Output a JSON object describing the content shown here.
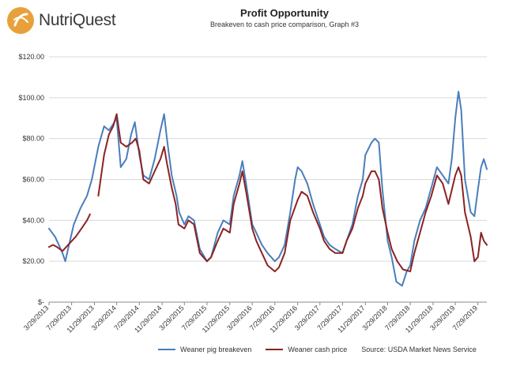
{
  "brand": {
    "name": "NutriQuest"
  },
  "chart_data": {
    "type": "line",
    "title": "Profit Opportunity",
    "subtitle": "Breakeven to cash price comparison, Graph #3",
    "xlabel": "",
    "ylabel": "",
    "x_ticks": [
      "3/29/2013",
      "7/29/2013",
      "11/29/2013",
      "3/29/2014",
      "7/29/2014",
      "11/29/2014",
      "3/29/2015",
      "7/29/2015",
      "11/29/2015",
      "3/29/2016",
      "7/29/2016",
      "11/29/2016",
      "3/29/2017",
      "7/29/2017",
      "11/29/2017",
      "3/29/2018",
      "7/29/2018",
      "11/29/2018",
      "3/29/2019",
      "7/29/2019"
    ],
    "y_ticks": [
      "$-",
      "$20.00",
      "$40.00",
      "$60.00",
      "$80.00",
      "$100.00",
      "$120.00"
    ],
    "ylim": [
      0,
      120
    ],
    "grid": true,
    "legend_position": "bottom",
    "x_dates": [
      "2013-03-29",
      "2013-07-29",
      "2013-11-29",
      "2014-03-29",
      "2014-07-29",
      "2014-11-29",
      "2015-03-29",
      "2015-07-29",
      "2015-11-29",
      "2016-03-29",
      "2016-07-29",
      "2016-11-29",
      "2017-03-29",
      "2017-07-29",
      "2017-11-29",
      "2018-03-29",
      "2018-07-29",
      "2018-11-29",
      "2019-03-29",
      "2019-07-29",
      "2019-09-15"
    ],
    "series": [
      {
        "name": "Weaner pig breakeven",
        "color": "#4a7ebb",
        "points": [
          [
            "2013-03-29",
            36
          ],
          [
            "2013-05-01",
            32
          ],
          [
            "2013-06-10",
            24
          ],
          [
            "2013-06-25",
            20
          ],
          [
            "2013-07-15",
            28
          ],
          [
            "2013-08-10",
            38
          ],
          [
            "2013-09-15",
            46
          ],
          [
            "2013-10-20",
            52
          ],
          [
            "2013-11-15",
            60
          ],
          [
            "2013-12-20",
            76
          ],
          [
            "2014-01-20",
            86
          ],
          [
            "2014-02-15",
            84
          ],
          [
            "2014-03-10",
            87
          ],
          [
            "2014-03-29",
            90
          ],
          [
            "2014-04-20",
            66
          ],
          [
            "2014-05-20",
            70
          ],
          [
            "2014-06-15",
            82
          ],
          [
            "2014-07-05",
            88
          ],
          [
            "2014-07-29",
            72
          ],
          [
            "2014-08-20",
            62
          ],
          [
            "2014-09-20",
            60
          ],
          [
            "2014-10-20",
            70
          ],
          [
            "2014-11-20",
            84
          ],
          [
            "2014-12-10",
            92
          ],
          [
            "2014-12-25",
            80
          ],
          [
            "2015-01-20",
            62
          ],
          [
            "2015-02-15",
            52
          ],
          [
            "2015-03-01",
            44
          ],
          [
            "2015-03-29",
            38
          ],
          [
            "2015-04-20",
            42
          ],
          [
            "2015-05-20",
            40
          ],
          [
            "2015-06-20",
            26
          ],
          [
            "2015-07-29",
            20
          ],
          [
            "2015-08-20",
            22
          ],
          [
            "2015-09-25",
            34
          ],
          [
            "2015-10-25",
            40
          ],
          [
            "2015-11-29",
            38
          ],
          [
            "2015-12-20",
            52
          ],
          [
            "2016-01-20",
            62
          ],
          [
            "2016-02-05",
            69
          ],
          [
            "2016-02-25",
            58
          ],
          [
            "2016-03-29",
            38
          ],
          [
            "2016-04-20",
            34
          ],
          [
            "2016-05-20",
            28
          ],
          [
            "2016-06-20",
            24
          ],
          [
            "2016-07-29",
            20
          ],
          [
            "2016-08-20",
            22
          ],
          [
            "2016-09-20",
            28
          ],
          [
            "2016-10-20",
            44
          ],
          [
            "2016-11-15",
            60
          ],
          [
            "2016-11-29",
            66
          ],
          [
            "2016-12-20",
            64
          ],
          [
            "2017-01-20",
            58
          ],
          [
            "2017-02-20",
            48
          ],
          [
            "2017-03-29",
            38
          ],
          [
            "2017-04-20",
            32
          ],
          [
            "2017-05-20",
            28
          ],
          [
            "2017-06-20",
            26
          ],
          [
            "2017-07-29",
            24
          ],
          [
            "2017-08-20",
            30
          ],
          [
            "2017-09-20",
            38
          ],
          [
            "2017-10-20",
            52
          ],
          [
            "2017-11-15",
            60
          ],
          [
            "2017-11-29",
            72
          ],
          [
            "2018-01-01",
            78
          ],
          [
            "2018-01-20",
            80
          ],
          [
            "2018-02-10",
            78
          ],
          [
            "2018-03-01",
            55
          ],
          [
            "2018-03-29",
            30
          ],
          [
            "2018-04-20",
            22
          ],
          [
            "2018-05-15",
            10
          ],
          [
            "2018-06-15",
            8
          ],
          [
            "2018-07-10",
            15
          ],
          [
            "2018-07-29",
            18
          ],
          [
            "2018-08-20",
            30
          ],
          [
            "2018-09-20",
            40
          ],
          [
            "2018-10-20",
            46
          ],
          [
            "2018-11-20",
            56
          ],
          [
            "2018-12-20",
            66
          ],
          [
            "2019-01-20",
            62
          ],
          [
            "2019-02-20",
            58
          ],
          [
            "2019-03-10",
            70
          ],
          [
            "2019-03-29",
            90
          ],
          [
            "2019-04-15",
            103
          ],
          [
            "2019-04-30",
            94
          ],
          [
            "2019-05-20",
            60
          ],
          [
            "2019-06-20",
            44
          ],
          [
            "2019-07-10",
            42
          ],
          [
            "2019-07-29",
            55
          ],
          [
            "2019-08-15",
            66
          ],
          [
            "2019-08-30",
            70
          ],
          [
            "2019-09-15",
            65
          ]
        ]
      },
      {
        "name": "Weaner cash price",
        "color": "#8b2323",
        "points": [
          [
            "2013-03-29",
            27
          ],
          [
            "2013-04-20",
            28
          ],
          [
            "2013-05-10",
            27
          ],
          [
            "2013-06-10",
            25
          ],
          [
            "2013-07-10",
            28
          ],
          [
            "2013-08-20",
            32
          ],
          [
            "2013-09-20",
            36
          ],
          [
            "2013-10-20",
            40
          ],
          [
            "2013-11-05",
            43
          ],
          null,
          [
            "2013-12-20",
            52
          ],
          [
            "2014-01-20",
            72
          ],
          [
            "2014-02-15",
            82
          ],
          [
            "2014-03-10",
            86
          ],
          [
            "2014-03-29",
            92
          ],
          [
            "2014-04-20",
            78
          ],
          [
            "2014-05-20",
            76
          ],
          [
            "2014-06-20",
            78
          ],
          [
            "2014-07-10",
            80
          ],
          [
            "2014-07-29",
            74
          ],
          [
            "2014-08-20",
            60
          ],
          [
            "2014-09-20",
            58
          ],
          [
            "2014-10-20",
            64
          ],
          [
            "2014-11-20",
            70
          ],
          [
            "2014-12-10",
            76
          ],
          [
            "2014-12-25",
            68
          ],
          [
            "2015-01-20",
            56
          ],
          [
            "2015-02-10",
            48
          ],
          [
            "2015-02-25",
            38
          ],
          [
            "2015-03-29",
            36
          ],
          [
            "2015-04-20",
            40
          ],
          [
            "2015-05-20",
            38
          ],
          [
            "2015-06-20",
            24
          ],
          [
            "2015-07-29",
            20
          ],
          [
            "2015-08-20",
            22
          ],
          [
            "2015-09-25",
            30
          ],
          [
            "2015-10-25",
            36
          ],
          [
            "2015-11-29",
            34
          ],
          [
            "2015-12-20",
            48
          ],
          [
            "2016-01-20",
            58
          ],
          [
            "2016-02-05",
            64
          ],
          [
            "2016-02-25",
            54
          ],
          [
            "2016-03-29",
            36
          ],
          [
            "2016-04-20",
            30
          ],
          [
            "2016-05-20",
            24
          ],
          [
            "2016-06-20",
            18
          ],
          [
            "2016-07-29",
            15
          ],
          [
            "2016-08-20",
            17
          ],
          [
            "2016-09-20",
            24
          ],
          [
            "2016-10-20",
            40
          ],
          [
            "2016-11-29",
            50
          ],
          [
            "2016-12-20",
            54
          ],
          [
            "2017-01-20",
            52
          ],
          [
            "2017-02-20",
            44
          ],
          [
            "2017-03-29",
            36
          ],
          [
            "2017-04-20",
            30
          ],
          [
            "2017-05-20",
            26
          ],
          [
            "2017-06-20",
            24
          ],
          [
            "2017-07-29",
            24
          ],
          [
            "2017-08-20",
            30
          ],
          [
            "2017-09-20",
            36
          ],
          [
            "2017-10-20",
            46
          ],
          [
            "2017-11-15",
            52
          ],
          [
            "2017-11-29",
            58
          ],
          [
            "2018-01-01",
            64
          ],
          [
            "2018-01-20",
            64
          ],
          [
            "2018-02-10",
            60
          ],
          [
            "2018-03-01",
            46
          ],
          [
            "2018-03-29",
            34
          ],
          [
            "2018-04-20",
            26
          ],
          [
            "2018-05-20",
            20
          ],
          [
            "2018-06-20",
            16
          ],
          [
            "2018-07-29",
            15
          ],
          [
            "2018-08-20",
            24
          ],
          [
            "2018-09-20",
            34
          ],
          [
            "2018-10-20",
            44
          ],
          [
            "2018-11-20",
            52
          ],
          [
            "2018-12-20",
            62
          ],
          [
            "2019-01-20",
            58
          ],
          [
            "2019-02-20",
            48
          ],
          [
            "2019-03-29",
            62
          ],
          [
            "2019-04-15",
            66
          ],
          [
            "2019-04-30",
            62
          ],
          [
            "2019-05-20",
            44
          ],
          [
            "2019-06-20",
            32
          ],
          [
            "2019-07-10",
            20
          ],
          [
            "2019-07-29",
            22
          ],
          [
            "2019-08-15",
            34
          ],
          [
            "2019-08-30",
            30
          ],
          [
            "2019-09-15",
            28
          ]
        ]
      }
    ]
  },
  "source_note": "Source: USDA Market News Service"
}
